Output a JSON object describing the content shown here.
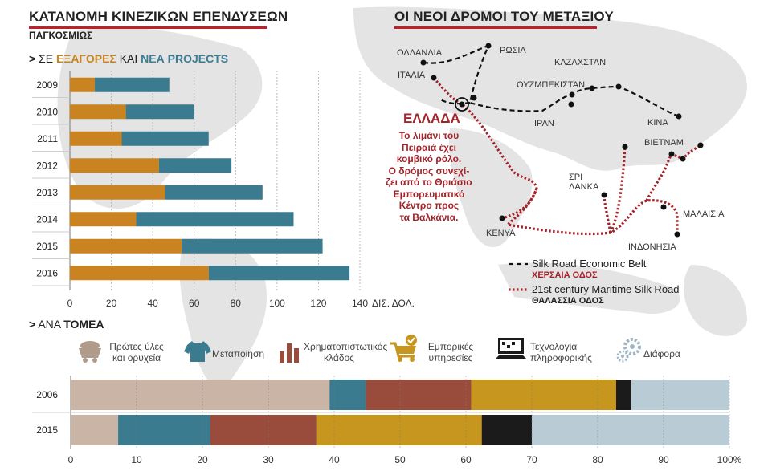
{
  "left_title": "ΚΑΤΑΝΟΜΗ ΚΙΝΕΖΙΚΩΝ ΕΠΕΝΔΥΣΕΩΝ",
  "left_subtitle": "ΠΑΓΚΟΣΜΙΩΣ",
  "section1": {
    "prefix": "ΣΕ",
    "acq": "ΕΞΑΓΟΡΕΣ",
    "and": "ΚΑΙ",
    "proj": "ΝΕΑ PROJECTS"
  },
  "section2": {
    "prefix": "ΑΝΑ",
    "sector": "ΤΟΜΕΑ"
  },
  "right_title": "ΟΙ ΝΕΟΙ ΔΡΟΜΟΙ ΤΟΥ ΜΕΤΑΞΙΟΥ",
  "greece": {
    "title": "ΕΛΛΑΔΑ",
    "lines": [
      "Το λιμάνι του",
      "Πειραιά έχει",
      "κομβικό ρόλο.",
      "Ο δρόμος συνεχί-",
      "ζει από το Θριάσιο",
      "Εμπορευματικό",
      "Κέντρο προς",
      "τα Βαλκάνια."
    ]
  },
  "places": {
    "netherlands": "ΟΛΛΑΝΔΙΑ",
    "russia": "ΡΩΣΙΑ",
    "kazakhstan": "ΚΑΖΑΧΣΤΑΝ",
    "italy": "ΙΤΑΛΙΑ",
    "uzbekistan": "ΟΥΖΜΠΕΚΙΣΤΑΝ",
    "iran": "ΙΡΑΝ",
    "china": "ΚΙΝΑ",
    "vietnam": "ΒΙΕΤΝΑΜ",
    "srilanka": "ΣΡΙ ΛΑΝΚΑ",
    "malaysia": "ΜΑΛΑΙΣΙΑ",
    "kenya": "ΚΕΝΥΑ",
    "indonesia": "ΙΝΔΟΝΗΣΙΑ"
  },
  "legend": {
    "land_en": "Silk Road Economic Belt",
    "land_gr": "ΧΕΡΣΑΙΑ ΟΔΟΣ",
    "sea_en": "21st century Maritime Silk Road",
    "sea_gr": "ΘΑΛΑΣΣΙΑ ΟΔΟΣ"
  },
  "colors": {
    "acquisitions": "#c98320",
    "projects": "#3b7b90",
    "red": "#a2232a"
  },
  "chart_data": [
    {
      "type": "bar",
      "orientation": "horizontal",
      "stacked": true,
      "categories": [
        "2009",
        "2010",
        "2011",
        "2012",
        "2013",
        "2014",
        "2015",
        "2016"
      ],
      "series": [
        {
          "name": "ΕΞΑΓΟΡΕΣ",
          "color": "#c98320",
          "values": [
            12,
            27,
            25,
            43,
            46,
            32,
            54,
            67
          ]
        },
        {
          "name": "ΝΕΑ PROJECTS",
          "color": "#3b7b90",
          "values": [
            36,
            33,
            42,
            35,
            47,
            76,
            68,
            68
          ]
        }
      ],
      "xticks": [
        "0",
        "20",
        "40",
        "60",
        "80",
        "100",
        "120",
        "140"
      ],
      "xunit": "ΔΙΣ. ΔΟΛ.",
      "xlim": [
        0,
        140
      ],
      "grid": true
    },
    {
      "type": "bar",
      "orientation": "horizontal",
      "stacked": true,
      "percent": true,
      "categories": [
        "2006",
        "2015"
      ],
      "series": [
        {
          "name": "Πρώτες ύλες και ορυχεία",
          "icon": "mining-cart-icon",
          "color": "#c9b4a6",
          "values": [
            39.3,
            7.2
          ]
        },
        {
          "name": "Μεταποίηση",
          "icon": "shirt-icon",
          "color": "#3b7b90",
          "values": [
            5.5,
            14.0
          ]
        },
        {
          "name": "Χρηματοπιστωτικός κλάδος",
          "icon": "bar-chart-icon",
          "color": "#9a4c3c",
          "values": [
            16.0,
            16.1
          ]
        },
        {
          "name": "Εμπορικές υπηρεσίες",
          "icon": "shopping-cart-icon",
          "color": "#c7961f",
          "values": [
            22.0,
            25.1
          ]
        },
        {
          "name": "Τεχνολογία πληροφορικής",
          "icon": "computer-icon",
          "color": "#1b1b1b",
          "values": [
            2.3,
            7.6
          ]
        },
        {
          "name": "Διάφορα",
          "icon": "gears-icon",
          "color": "#b9cbd4",
          "values": [
            14.9,
            30.0
          ]
        }
      ],
      "xticks": [
        "0",
        "10",
        "20",
        "30",
        "40",
        "50",
        "60",
        "70",
        "80",
        "90",
        "100%"
      ],
      "xlim": [
        0,
        100
      ],
      "grid": true
    }
  ]
}
